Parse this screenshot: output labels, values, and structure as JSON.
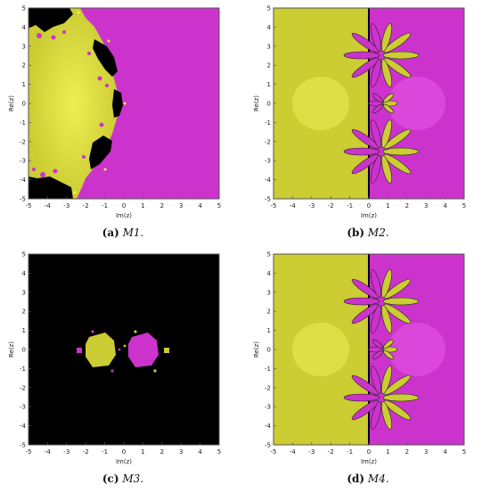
{
  "figure": {
    "axes": {
      "x_label": "Im(z)",
      "y_label": "Re(z)",
      "ticks": [
        "-5",
        "-4",
        "-3",
        "-2",
        "-1",
        "0",
        "1",
        "2",
        "3",
        "4",
        "5"
      ],
      "range": [
        -5,
        5
      ]
    },
    "colors": {
      "yellow": "#cccc33",
      "magenta": "#cc33cc",
      "black": "#000000"
    },
    "panels": [
      {
        "id": "a",
        "letter": "(a)",
        "label": "M1."
      },
      {
        "id": "b",
        "letter": "(b)",
        "label": "M2."
      },
      {
        "id": "c",
        "letter": "(c)",
        "label": "M3."
      },
      {
        "id": "d",
        "letter": "(d)",
        "label": "M4."
      }
    ]
  }
}
